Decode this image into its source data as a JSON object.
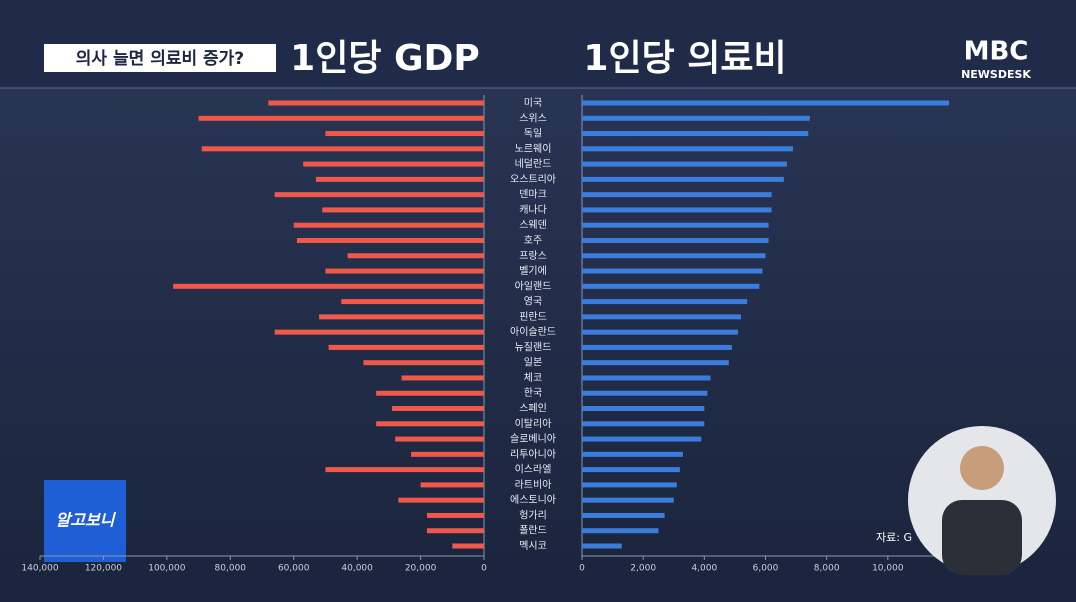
{
  "header": {
    "caption": "의사 늘면 의료비 증가?",
    "title_left": "1인당 GDP",
    "title_right": "1인당 의료비"
  },
  "logo": {
    "name": "MBC",
    "sub": "NEWSDESK"
  },
  "badge": "알고보니",
  "source": "자료: G",
  "chart_data": [
    {
      "type": "bar",
      "orientation": "horizontal",
      "direction": "left",
      "color": "#f0584a",
      "categories": [
        "미국",
        "스위스",
        "독일",
        "노르웨이",
        "네덜란드",
        "오스트리아",
        "덴마크",
        "캐나다",
        "스웨덴",
        "호주",
        "프랑스",
        "벨기에",
        "아일랜드",
        "영국",
        "핀란드",
        "아이슬란드",
        "뉴질랜드",
        "일본",
        "체코",
        "한국",
        "스페인",
        "이탈리아",
        "슬로베니아",
        "리투아니아",
        "이스라엘",
        "라트비아",
        "에스토니아",
        "헝가리",
        "폴란드",
        "멕시코"
      ],
      "values": [
        68000,
        90000,
        50000,
        89000,
        57000,
        53000,
        66000,
        51000,
        60000,
        59000,
        43000,
        50000,
        98000,
        45000,
        52000,
        66000,
        49000,
        38000,
        26000,
        34000,
        29000,
        34000,
        28000,
        23000,
        50000,
        20000,
        27000,
        18000,
        18000,
        10000
      ],
      "xlim": [
        0,
        140000
      ],
      "xticks": [
        0,
        {
          "value": 20000,
          "label": "20,000"
        },
        {
          "value": 40000,
          "label": "40,000"
        },
        {
          "value": 60000,
          "label": "60,000"
        },
        {
          "value": 80000,
          "label": "80,000"
        },
        {
          "value": 100000,
          "label": "100,000"
        },
        {
          "value": 120000,
          "label": "120,000"
        },
        {
          "value": 140000,
          "label": "140,000"
        }
      ]
    },
    {
      "type": "bar",
      "orientation": "horizontal",
      "direction": "right",
      "color": "#3b7ddd",
      "values": [
        12000,
        7450,
        7400,
        6900,
        6700,
        6600,
        6200,
        6200,
        6100,
        6100,
        6000,
        5900,
        5800,
        5400,
        5200,
        5100,
        4900,
        4800,
        4200,
        4100,
        4000,
        4000,
        3900,
        3300,
        3200,
        3100,
        3000,
        2700,
        2500,
        1300
      ],
      "xlim": [
        0,
        12000
      ],
      "xticks": [
        0,
        {
          "value": 2000,
          "label": "2,000"
        },
        {
          "value": 4000,
          "label": "4,000"
        },
        {
          "value": 6000,
          "label": "6,000"
        },
        {
          "value": 8000,
          "label": "8,000"
        },
        {
          "value": 10000,
          "label": "10,000"
        }
      ]
    }
  ]
}
